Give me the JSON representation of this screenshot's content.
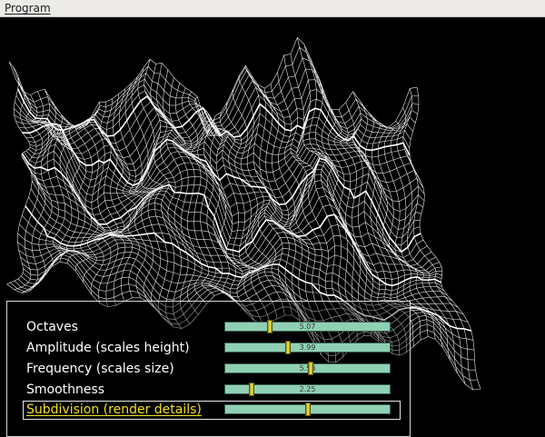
{
  "menubar": {
    "program_label": "Program"
  },
  "panel": {
    "rows": [
      {
        "label": "Octaves",
        "value": "5.07",
        "fraction": 0.27,
        "selected": false
      },
      {
        "label": "Amplitude (scales height)",
        "value": "3.99",
        "fraction": 0.38,
        "selected": false
      },
      {
        "label": "Frequency (scales size)",
        "value": "5.53",
        "fraction": 0.52,
        "selected": false
      },
      {
        "label": "Smoothness",
        "value": "2.25",
        "fraction": 0.16,
        "selected": false
      },
      {
        "label": "Subdivision (render details)",
        "value": "7",
        "fraction": 0.5,
        "selected": true
      }
    ]
  },
  "colors": {
    "mesh": "#ffffff",
    "background": "#000000",
    "track": "#8fd0b4",
    "thumb": "#f7ea3c",
    "selected_label": "#f2e21c"
  },
  "icons": {
    "terrain": "wireframe-terrain-mesh",
    "slider_thumb": "slider-thumb-icon"
  }
}
